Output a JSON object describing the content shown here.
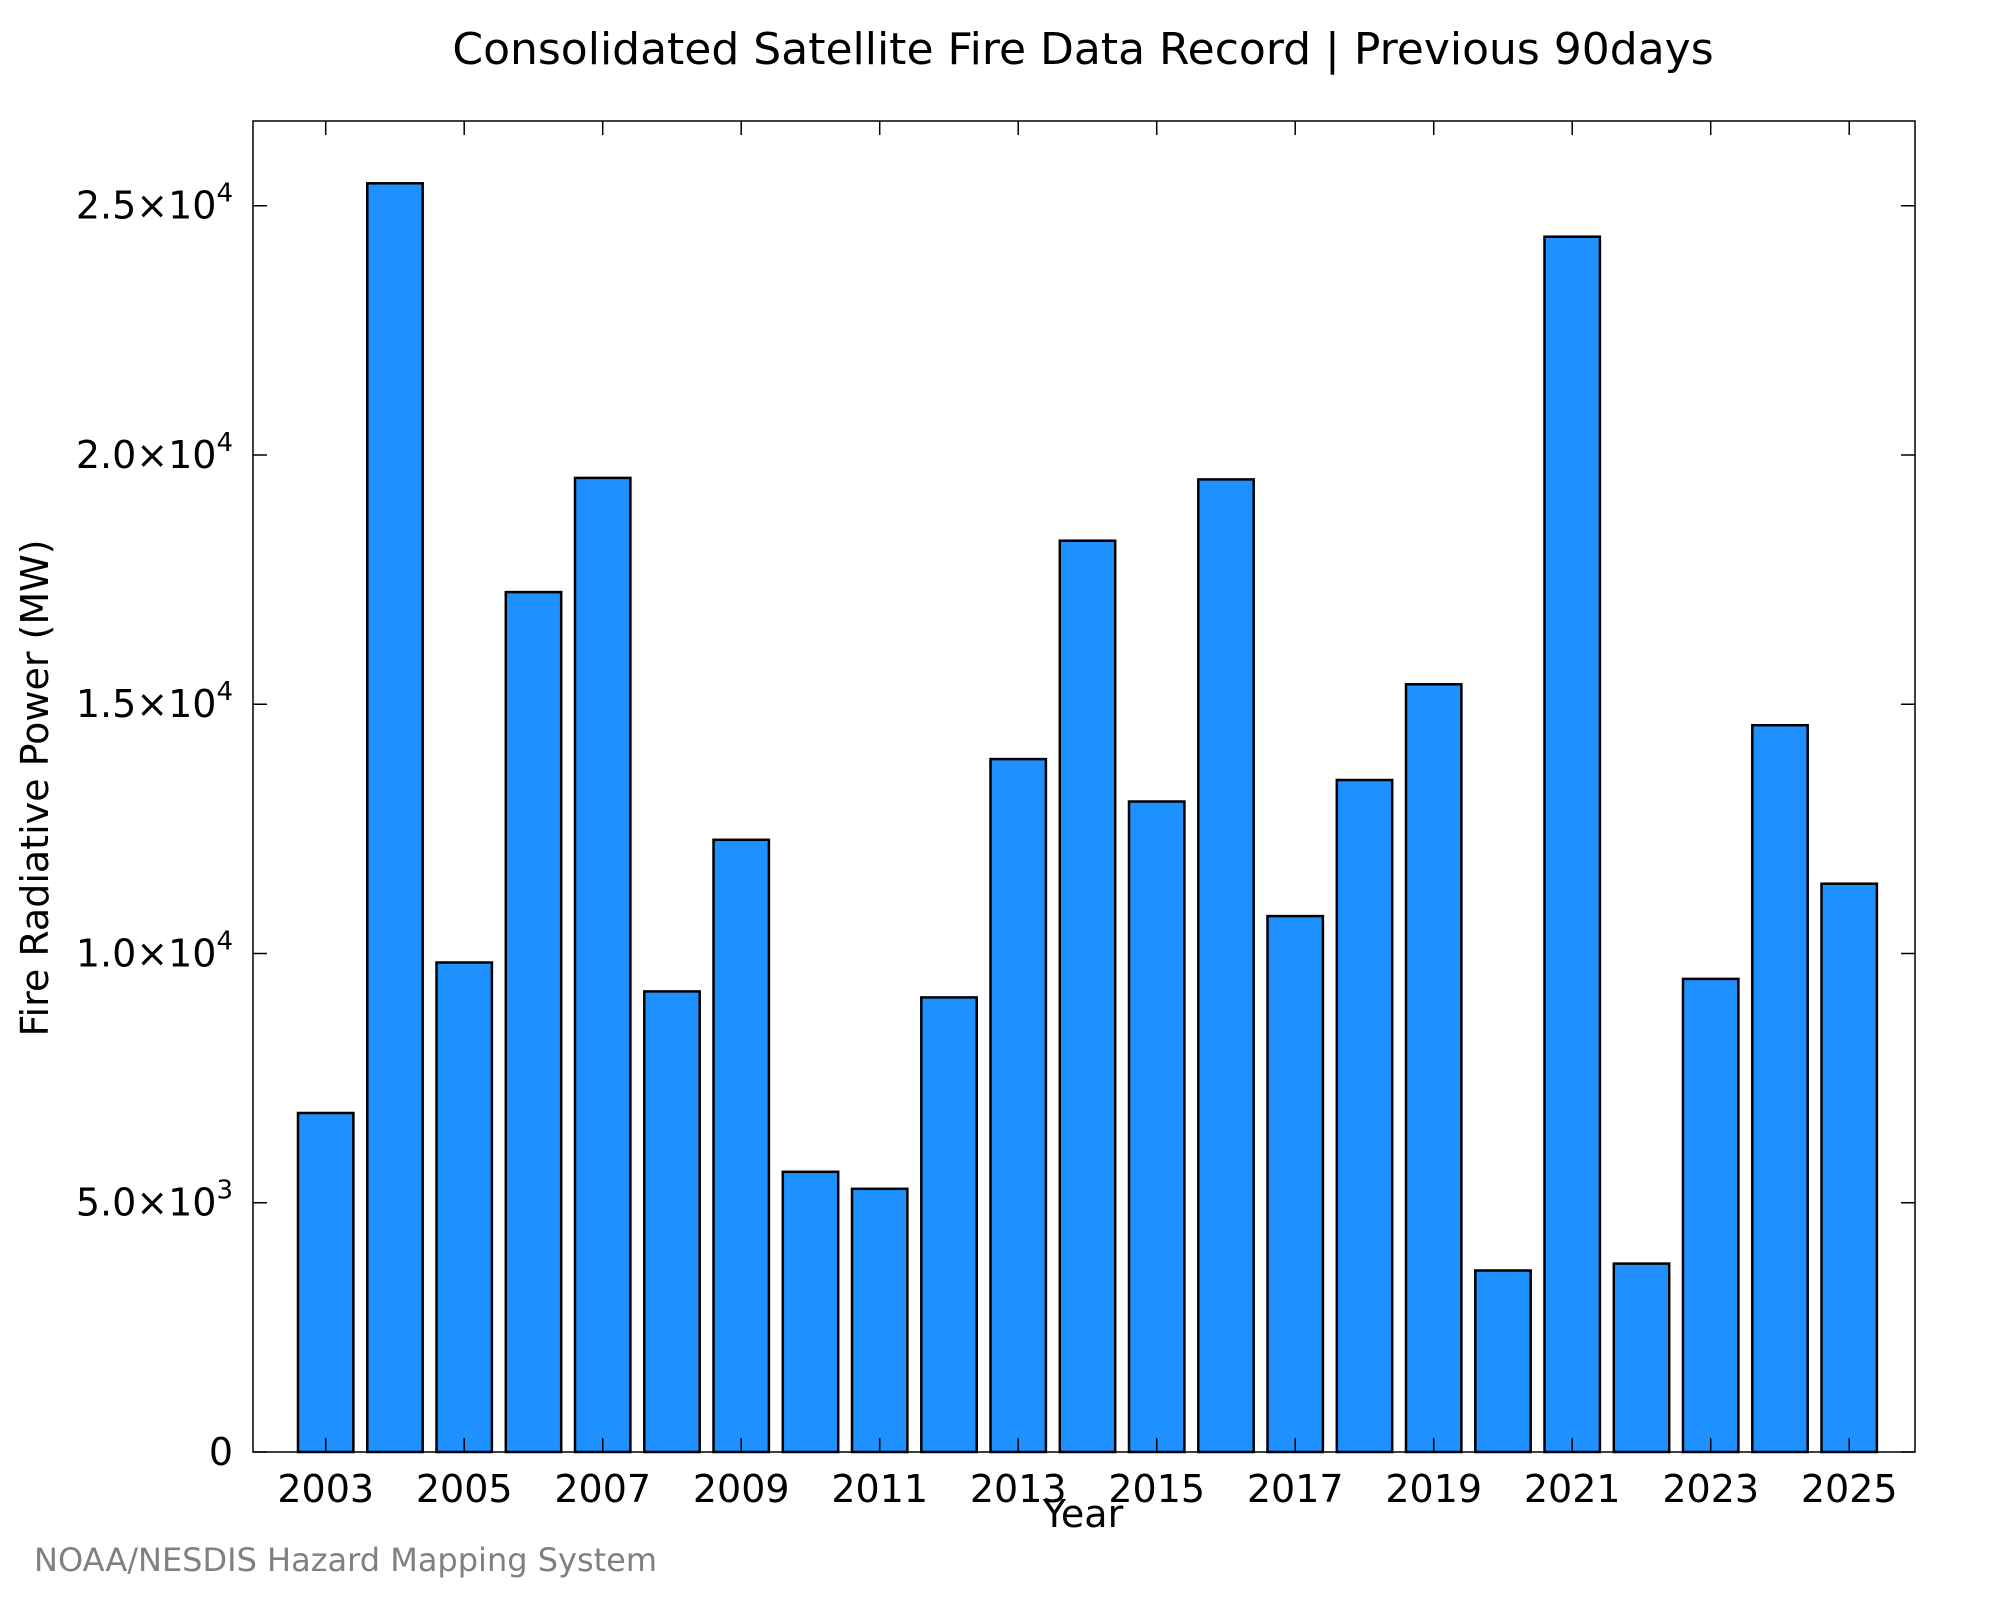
{
  "chart_data": {
    "type": "bar",
    "title": "Consolidated Satellite Fire Data Record | Previous 90days",
    "xlabel": "Year",
    "ylabel": "Fire Radiative Power (MW)",
    "ylim": [
      0,
      26700
    ],
    "grid": false,
    "bar_color": "#1e90ff",
    "bar_edge_color": "#000000",
    "categories": [
      "2003",
      "2004",
      "2005",
      "2006",
      "2007",
      "2008",
      "2009",
      "2010",
      "2011",
      "2012",
      "2013",
      "2014",
      "2015",
      "2016",
      "2017",
      "2018",
      "2019",
      "2020",
      "2021",
      "2022",
      "2023",
      "2024",
      "2025"
    ],
    "values": [
      6800,
      25450,
      9820,
      17250,
      19540,
      9240,
      12280,
      5620,
      5280,
      9120,
      13900,
      18280,
      13050,
      19510,
      10750,
      13480,
      15400,
      3640,
      24380,
      3780,
      9490,
      14580,
      11400
    ],
    "x_tick_labels": [
      "2003",
      "2005",
      "2007",
      "2009",
      "2011",
      "2013",
      "2015",
      "2017",
      "2019",
      "2021",
      "2023",
      "2025"
    ],
    "y_ticks": [
      {
        "value": 0,
        "mantissa": "0",
        "exponent": ""
      },
      {
        "value": 5000,
        "mantissa": "5.0×10",
        "exponent": "3"
      },
      {
        "value": 10000,
        "mantissa": "1.0×10",
        "exponent": "4"
      },
      {
        "value": 15000,
        "mantissa": "1.5×10",
        "exponent": "4"
      },
      {
        "value": 20000,
        "mantissa": "2.0×10",
        "exponent": "4"
      },
      {
        "value": 25000,
        "mantissa": "2.5×10",
        "exponent": "4"
      }
    ]
  },
  "source_note": "NOAA/NESDIS Hazard Mapping System"
}
